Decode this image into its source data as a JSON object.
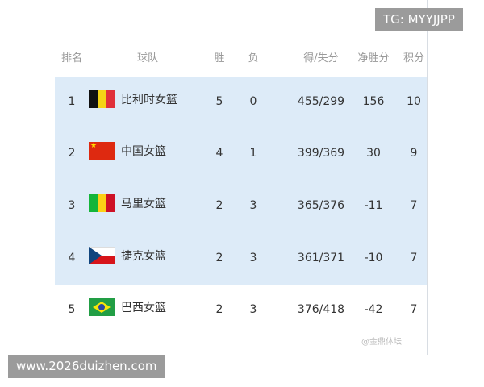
{
  "header": {
    "rank": "排名",
    "team": "球队",
    "wins": "胜",
    "losses": "负",
    "points_for_against": "得/失分",
    "net": "净胜分",
    "score": "积分"
  },
  "rows": [
    {
      "rank": "1",
      "team": "比利时女篮",
      "flag": "belgium",
      "wins": "5",
      "losses": "0",
      "pf_pa": "455/299",
      "net": "156",
      "score": "10"
    },
    {
      "rank": "2",
      "team": "中国女篮",
      "flag": "china",
      "wins": "4",
      "losses": "1",
      "pf_pa": "399/369",
      "net": "30",
      "score": "9"
    },
    {
      "rank": "3",
      "team": "马里女篮",
      "flag": "mali",
      "wins": "2",
      "losses": "3",
      "pf_pa": "365/376",
      "net": "-11",
      "score": "7"
    },
    {
      "rank": "4",
      "team": "捷克女篮",
      "flag": "czech",
      "wins": "2",
      "losses": "3",
      "pf_pa": "361/371",
      "net": "-10",
      "score": "7"
    },
    {
      "rank": "5",
      "team": "巴西女篮",
      "flag": "brazil",
      "wins": "2",
      "losses": "3",
      "pf_pa": "376/418",
      "net": "-42",
      "score": "7"
    }
  ],
  "highlight_color": "#ddebf8",
  "tags": {
    "top_right": "TG: MYYJJPP",
    "bottom_left": "www.2026duizhen.com"
  },
  "watermark": "@金鼎体坛"
}
